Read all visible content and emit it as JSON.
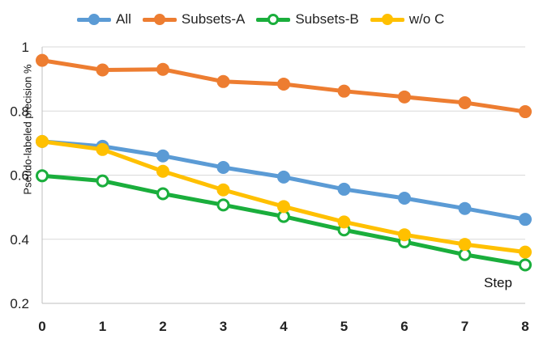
{
  "chart_data": {
    "type": "line",
    "x": [
      0,
      1,
      2,
      3,
      4,
      5,
      6,
      7,
      8
    ],
    "ylabel": "Pseudo-labeled precision %",
    "xlabel": "Step",
    "ylim": [
      0.2,
      1.0
    ],
    "yticks": [
      "0.2",
      "0.4",
      "0.6",
      "0.8",
      "1"
    ],
    "xticks": [
      "0",
      "1",
      "2",
      "3",
      "4",
      "5",
      "6",
      "7",
      "8"
    ],
    "grid": true,
    "legend_position": "top",
    "series": [
      {
        "name": "All",
        "color": "#5b9bd5",
        "marker_fill": "#5b9bd5",
        "values": [
          0.705,
          0.69,
          0.66,
          0.624,
          0.594,
          0.556,
          0.528,
          0.496,
          0.462
        ]
      },
      {
        "name": "Subsets-A",
        "color": "#ed7d31",
        "marker_fill": "#ed7d31",
        "values": [
          0.958,
          0.928,
          0.93,
          0.892,
          0.884,
          0.862,
          0.844,
          0.826,
          0.798
        ]
      },
      {
        "name": "Subsets-B",
        "color": "#1aae3c",
        "marker_fill": "#ffffff",
        "values": [
          0.598,
          0.582,
          0.542,
          0.507,
          0.471,
          0.429,
          0.392,
          0.352,
          0.32
        ]
      },
      {
        "name": "w/o C",
        "color": "#ffc000",
        "marker_fill": "#ffc000",
        "values": [
          0.705,
          0.68,
          0.612,
          0.554,
          0.502,
          0.454,
          0.414,
          0.384,
          0.36
        ]
      }
    ]
  }
}
